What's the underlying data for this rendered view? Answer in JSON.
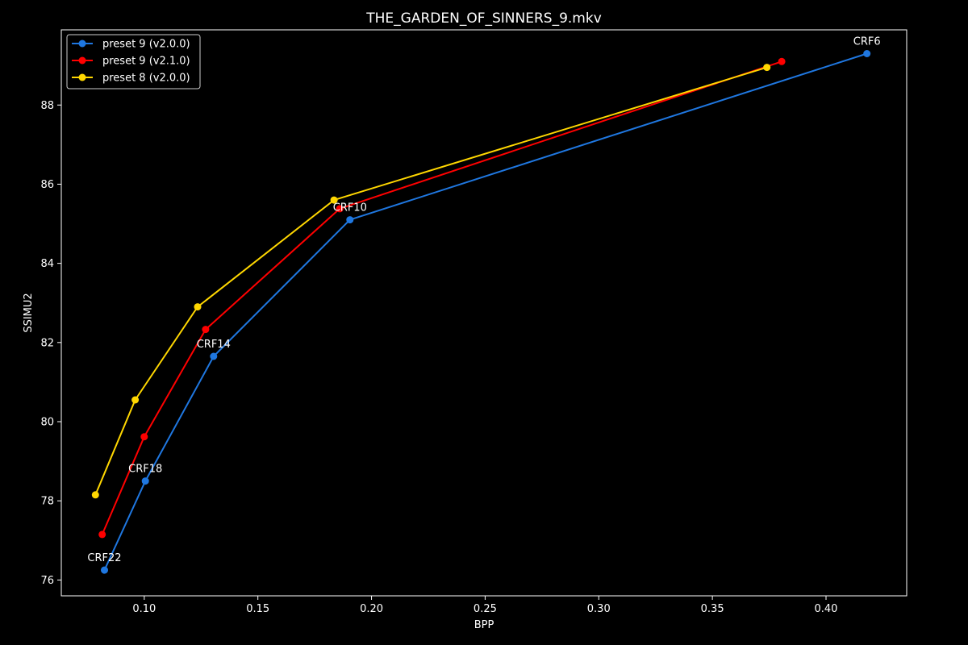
{
  "chart_data": {
    "type": "line",
    "title": "THE_GARDEN_OF_SINNERS_9.mkv",
    "xlabel": "BPP",
    "ylabel": "SSIMU2",
    "xlim": [
      0.0635,
      0.4355
    ],
    "ylim": [
      75.6,
      89.9
    ],
    "xticks": [
      0.1,
      0.15,
      0.2,
      0.25,
      0.3,
      0.35,
      0.4
    ],
    "xtick_labels": [
      "0.10",
      "0.15",
      "0.20",
      "0.25",
      "0.30",
      "0.35",
      "0.40"
    ],
    "yticks": [
      76,
      78,
      80,
      82,
      84,
      86,
      88
    ],
    "ytick_labels": [
      "76",
      "78",
      "80",
      "82",
      "84",
      "86",
      "88"
    ],
    "grid": false,
    "legend_position": "top-left",
    "series": [
      {
        "name": "preset 9 (v2.0.0)",
        "color": "#1f77e0",
        "x": [
          0.0825,
          0.1005,
          0.1305,
          0.1905,
          0.418
        ],
        "y": [
          76.25,
          78.5,
          81.65,
          85.1,
          89.3
        ]
      },
      {
        "name": "preset 9 (v2.1.0)",
        "color": "#ff0000",
        "x": [
          0.0815,
          0.1,
          0.127,
          0.186,
          0.3805
        ],
        "y": [
          77.15,
          79.62,
          82.33,
          85.38,
          89.1
        ]
      },
      {
        "name": "preset 8 (v2.0.0)",
        "color": "#ffd700",
        "x": [
          0.0785,
          0.096,
          0.1235,
          0.1835,
          0.374
        ],
        "y": [
          78.15,
          80.55,
          82.9,
          85.6,
          88.95
        ]
      }
    ],
    "annotations": [
      {
        "text": "CRF22",
        "x": 0.0825,
        "y": 76.25
      },
      {
        "text": "CRF18",
        "x": 0.1005,
        "y": 78.5
      },
      {
        "text": "CRF14",
        "x": 0.1305,
        "y": 81.65
      },
      {
        "text": "CRF10",
        "x": 0.1905,
        "y": 85.1
      },
      {
        "text": "CRF6",
        "x": 0.418,
        "y": 89.3
      }
    ]
  }
}
